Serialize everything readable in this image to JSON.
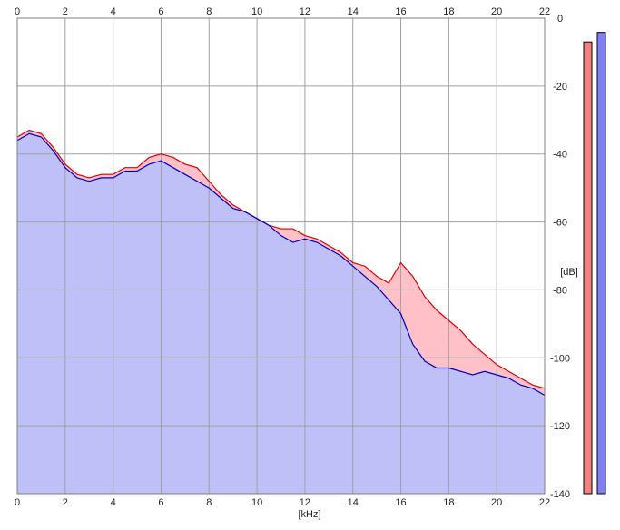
{
  "chart_data": {
    "type": "area",
    "x_unit": "[kHz]",
    "y_unit": "[dB]",
    "xlim": [
      0,
      22
    ],
    "ylim": [
      -140,
      0
    ],
    "x_ticks": [
      0,
      2,
      4,
      6,
      8,
      10,
      12,
      14,
      16,
      18,
      20,
      22
    ],
    "y_ticks": [
      0,
      -20,
      -40,
      -60,
      -80,
      -100,
      -120,
      -140
    ],
    "grid": true,
    "series": [
      {
        "color": "#e00000",
        "fill": "#ffc0c8",
        "x": [
          0,
          0.5,
          1,
          1.5,
          2,
          2.5,
          3,
          3.5,
          4,
          4.5,
          5,
          5.5,
          6,
          6.5,
          7,
          7.5,
          8,
          8.5,
          9,
          9.5,
          10,
          10.5,
          11,
          11.5,
          12,
          12.5,
          13,
          13.5,
          14,
          14.5,
          15,
          15.5,
          16,
          16.5,
          17,
          17.5,
          18,
          18.5,
          19,
          19.5,
          20,
          20.5,
          21,
          21.5,
          22
        ],
        "values": [
          -35,
          -33,
          -34,
          -38,
          -43,
          -46,
          -47,
          -46,
          -46,
          -44,
          -44,
          -41,
          -40,
          -41,
          -43,
          -44,
          -48,
          -52,
          -55,
          -57,
          -59,
          -61,
          -62,
          -62,
          -64,
          -65,
          -67,
          -69,
          -72,
          -73,
          -76,
          -78,
          -72,
          -76,
          -82,
          -86,
          -89,
          -92,
          -96,
          -99,
          -102,
          -104,
          -106,
          -108,
          -109
        ]
      },
      {
        "color": "#0000c0",
        "fill": "#c0c0f8",
        "x": [
          0,
          0.5,
          1,
          1.5,
          2,
          2.5,
          3,
          3.5,
          4,
          4.5,
          5,
          5.5,
          6,
          6.5,
          7,
          7.5,
          8,
          8.5,
          9,
          9.5,
          10,
          10.5,
          11,
          11.5,
          12,
          12.5,
          13,
          13.5,
          14,
          14.5,
          15,
          15.5,
          16,
          16.5,
          17,
          17.5,
          18,
          18.5,
          19,
          19.5,
          20,
          20.5,
          21,
          21.5,
          22
        ],
        "values": [
          -36,
          -34,
          -35,
          -39,
          -44,
          -47,
          -48,
          -47,
          -47,
          -45,
          -45,
          -43,
          -42,
          -44,
          -46,
          -48,
          -50,
          -53,
          -56,
          -57,
          -59,
          -61,
          -64,
          -66,
          -65,
          -66,
          -68,
          -70,
          -73,
          -76,
          -79,
          -83,
          -87,
          -96,
          -101,
          -103,
          -103,
          -104,
          -105,
          -104,
          -105,
          -106,
          -108,
          -109,
          -111
        ]
      }
    ],
    "meters": [
      {
        "color": "#f48080",
        "level": 0.95
      },
      {
        "color": "#8080f4",
        "level": 0.97
      }
    ]
  }
}
